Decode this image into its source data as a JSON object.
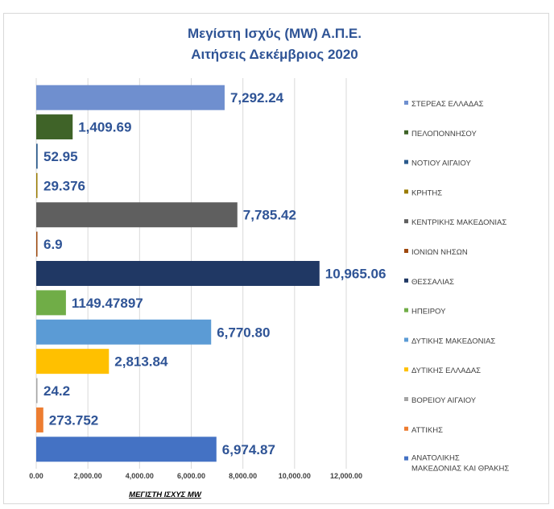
{
  "chart_data": {
    "type": "bar",
    "orientation": "horizontal",
    "title_line1": "Μεγίστη Ισχύς (MW) Α.Π.Ε.",
    "title_line2": "Αιτήσεις Δεκέμβριος 2020",
    "xlabel": "ΜΕΓΙΣΤΗ ΙΣΧΥΣ  MW",
    "xlim": [
      0,
      12000
    ],
    "xticks": [
      "0.00",
      "2,000.00",
      "4,000.00",
      "6,000.00",
      "8,000.00",
      "10,000.00",
      "12,000.00"
    ],
    "grid": true,
    "legend_position": "right",
    "series": [
      {
        "name": "ΣΤΕΡΕΑΣ ΕΛΛΑΔΑΣ",
        "value": 7292.24,
        "label": "7,292.24",
        "color": "#6f8fcf"
      },
      {
        "name": "ΠΕΛΟΠΟΝΝΗΣΟΥ",
        "value": 1409.69,
        "label": "1,409.69",
        "color": "#3f6328"
      },
      {
        "name": "ΝΟΤΙΟΥ ΑΙΓΑΙΟΥ",
        "value": 52.95,
        "label": "52.95",
        "color": "#2a5a8c"
      },
      {
        "name": "ΚΡΗΤΗΣ",
        "value": 29.376,
        "label": "29.376",
        "color": "#9a7b00"
      },
      {
        "name": "ΚΕΝΤΡΙΚΗΣ ΜΑΚΕΔΟΝΙΑΣ",
        "value": 7785.42,
        "label": "7,785.42",
        "color": "#5f5f5f"
      },
      {
        "name": "ΙΟΝΙΩΝ ΝΗΣΩΝ",
        "value": 6.9,
        "label": "6.9",
        "color": "#9e480e"
      },
      {
        "name": "ΘΕΣΣΑΛΙΑΣ",
        "value": 10965.06,
        "label": "10,965.06",
        "color": "#203864"
      },
      {
        "name": "ΗΠΕΙΡΟΥ",
        "value": 1149.47897,
        "label": "1149.47897",
        "color": "#70ad47"
      },
      {
        "name": "ΔΥΤΙΚΗΣ ΜΑΚΕΔΟΝΙΑΣ",
        "value": 6770.8,
        "label": "6,770.80",
        "color": "#5b9bd5"
      },
      {
        "name": "ΔΥΤΙΚΗΣ ΕΛΛΑΔΑΣ",
        "value": 2813.84,
        "label": "2,813.84",
        "color": "#ffc000"
      },
      {
        "name": "ΒΟΡΕΙΟΥ ΑΙΓΑΙΟΥ",
        "value": 24.2,
        "label": "24.2",
        "color": "#a5a5a5"
      },
      {
        "name": "ΑΤΤΙΚΗΣ",
        "value": 273.752,
        "label": "273.752",
        "color": "#ed7d31"
      },
      {
        "name": "ΑΝΑΤΟΛΙΚΗΣ ΜΑΚΕΔΟΝΙΑΣ ΚΑΙ ΘΡΑΚΗΣ",
        "value": 6974.87,
        "label": "6,974.87",
        "color": "#4472c4"
      }
    ]
  }
}
